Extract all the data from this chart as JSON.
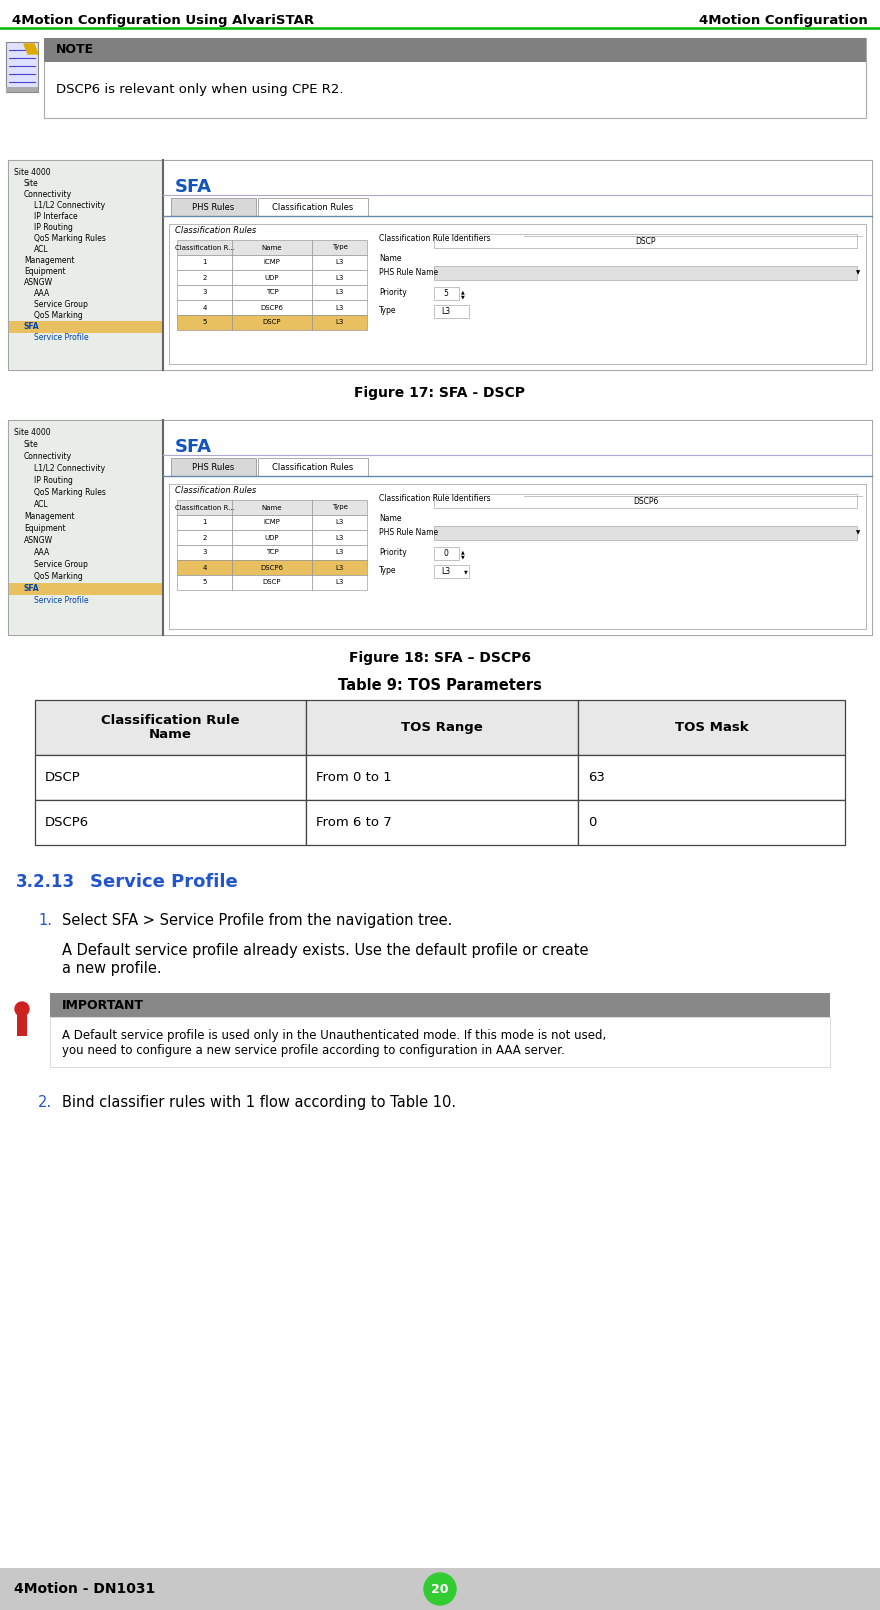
{
  "header_left": "4Motion Configuration Using AlvariSTAR",
  "header_right": "4Motion Configuration",
  "header_line_color": "#00bb00",
  "footer_left": "4Motion - DN1031",
  "footer_page": "20",
  "footer_bg": "#c8c8c8",
  "footer_circle_color": "#33cc33",
  "note_bg": "#808080",
  "note_label": "NOTE",
  "note_text": "DSCP6 is relevant only when using CPE R2.",
  "fig17_caption": "Figure 17: SFA - DSCP",
  "fig18_caption": "Figure 18: SFA – DSCP6",
  "table_title": "Table 9: TOS Parameters",
  "table_headers": [
    "Classification Rule\nName",
    "TOS Range",
    "TOS Mask"
  ],
  "table_rows": [
    [
      "DSCP",
      "From 0 to 1",
      "63"
    ],
    [
      "DSCP6",
      "From 6 to 7",
      "0"
    ]
  ],
  "table_header_bg": "#e8e8e8",
  "table_border_color": "#444444",
  "section_num": "3.2.13",
  "section_title": "Service Profile",
  "section_color": "#2255cc",
  "step1_text1": "Select SFA > Service Profile from the navigation tree.",
  "step2_text": "Bind classifier rules with 1 flow according to Table 10.",
  "important_bg": "#888888",
  "important_label": "IMPORTANT",
  "sfa_color": "#1155bb",
  "screenshot_bg": "#f2f2f2",
  "screenshot_border": "#999999",
  "nav_bg": "#e8ede8",
  "content_bg": "#ffffff",
  "tab_active_bg": "#ffffff",
  "tab_inactive_bg": "#d8d8d8",
  "row_highlight_blue": "#c8d8f8",
  "row_highlight_yellow": "#e8c060"
}
